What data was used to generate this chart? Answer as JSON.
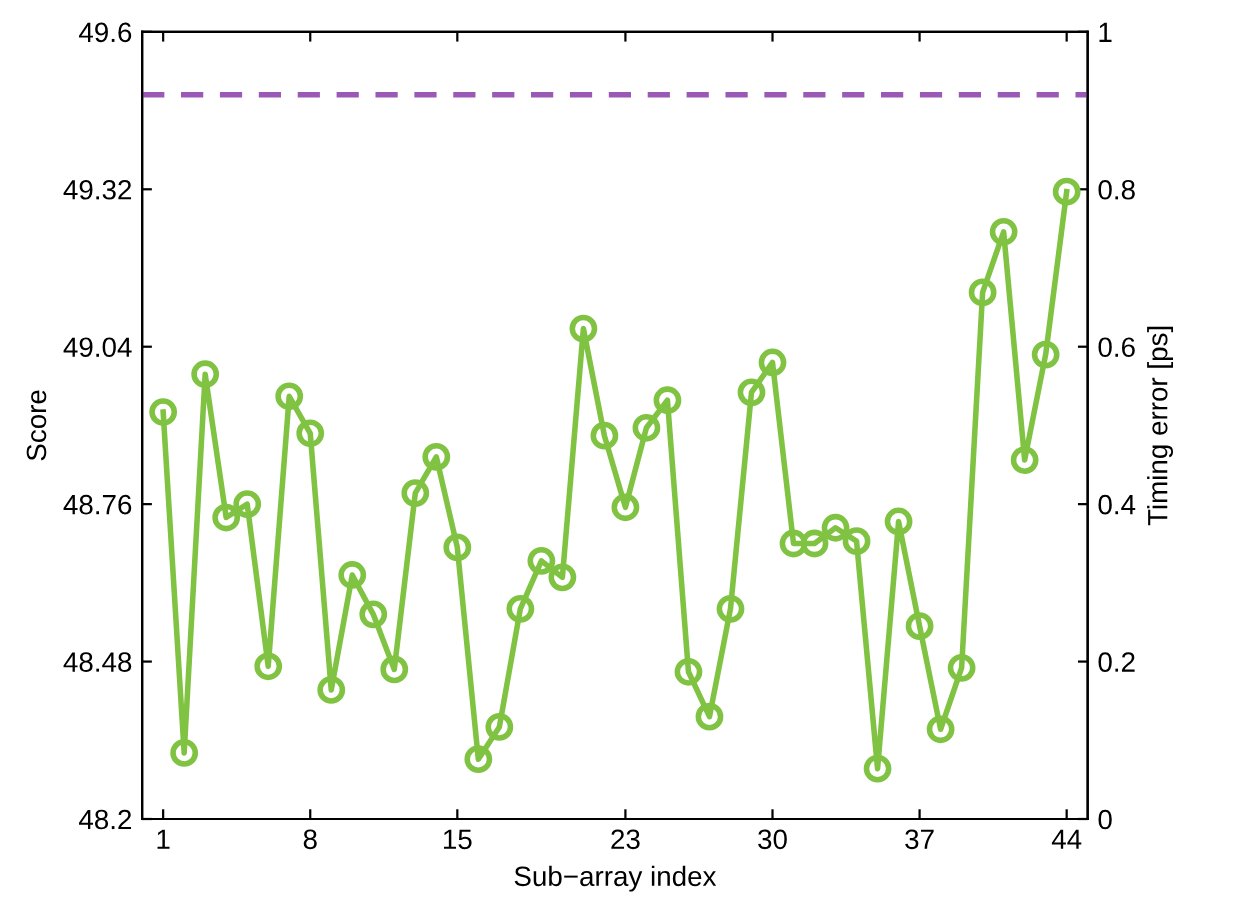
{
  "chart_data": {
    "type": "line",
    "xlabel": "Sub−array index",
    "ylabel": "Score",
    "y2label": "Timing error [ps]",
    "x": [
      1,
      2,
      3,
      4,
      5,
      6,
      7,
      8,
      9,
      10,
      11,
      12,
      13,
      14,
      15,
      16,
      17,
      18,
      19,
      20,
      21,
      22,
      23,
      24,
      25,
      26,
      27,
      28,
      29,
      30,
      31,
      32,
      33,
      34,
      35,
      36,
      37,
      38,
      39,
      40,
      41,
      42,
      43,
      44
    ],
    "xlim": [
      0,
      45
    ],
    "xticks": [
      1,
      8,
      15,
      23,
      30,
      37,
      44
    ],
    "ylim": [
      48.2,
      49.6
    ],
    "yticks": [
      48.2,
      48.48,
      48.76,
      49.04,
      49.32,
      49.6
    ],
    "y2lim": [
      0,
      1
    ],
    "y2ticks": [
      0,
      0.2,
      0.4,
      0.6,
      0.8,
      1
    ],
    "series": [
      {
        "color": "#80c342",
        "axis": "y2",
        "marker": "circle",
        "line_style": "solid",
        "values": [
          0.517,
          0.084,
          0.565,
          0.383,
          0.4,
          0.194,
          0.537,
          0.49,
          0.164,
          0.31,
          0.26,
          0.19,
          0.414,
          0.46,
          0.345,
          0.076,
          0.117,
          0.267,
          0.328,
          0.307,
          0.623,
          0.487,
          0.396,
          0.497,
          0.532,
          0.187,
          0.13,
          0.267,
          0.542,
          0.58,
          0.35,
          0.35,
          0.37,
          0.353,
          0.064,
          0.378,
          0.245,
          0.114,
          0.192,
          0.669,
          0.746,
          0.456,
          0.59,
          0.797
        ]
      }
    ],
    "ref_lines": [
      {
        "axis": "y2",
        "value": 0.92,
        "color": "#9b59b6",
        "line_style": "dashed"
      }
    ],
    "grid": false,
    "legend": false
  }
}
